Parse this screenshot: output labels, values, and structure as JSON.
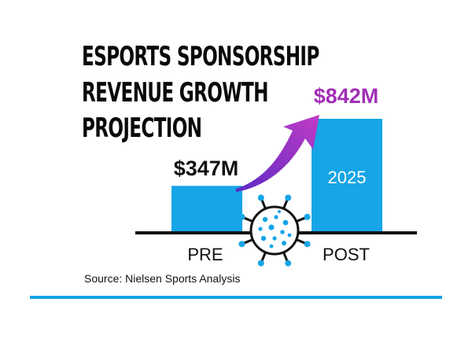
{
  "chart_data": {
    "type": "bar",
    "title_lines": [
      "ESPORTS SPONSORSHIP",
      "REVENUE GROWTH",
      "PROJECTION"
    ],
    "categories": [
      "PRE",
      "POST"
    ],
    "values": [
      347,
      842
    ],
    "value_labels": [
      "$347M",
      "$842M"
    ],
    "bar_inner_labels": [
      "",
      "2025"
    ],
    "unit": "$M",
    "ylim": [
      0,
      842
    ],
    "legend": "none",
    "grid": false,
    "annotation_icon": "virus-icon",
    "arrow": "growth-arrow-icon"
  },
  "source": "Source: Nielsen Sports Analysis",
  "colors": {
    "bar": "#16a5e6",
    "arrow_start": "#5b2bc4",
    "arrow_end": "#c13bc6",
    "post_value_label": "#a22fb6",
    "pre_value_label": "#111111",
    "baseline": "#111111",
    "virus": "#111111",
    "virus_dots": "#16a5e6",
    "footer_rule": "#16a5e6"
  }
}
